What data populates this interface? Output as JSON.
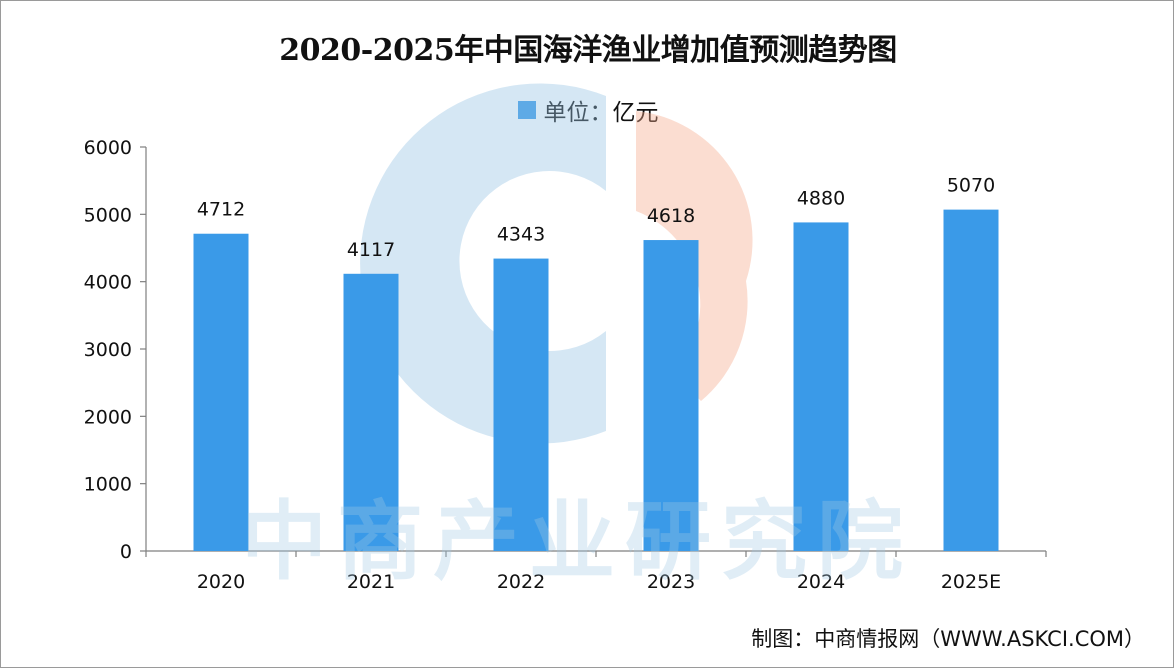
{
  "title": "2020-2025年中国海洋渔业增加值预测趋势图",
  "legend": {
    "label": "单位：亿元"
  },
  "source": "制图：中商情报网（WWW.ASKCI.COM）",
  "watermark": "中商产业研究院",
  "colors": {
    "bar": "#3a9ae8",
    "axis": "#7f7f7f",
    "text": "#111111"
  },
  "chart_data": {
    "type": "bar",
    "title": "2020-2025年中国海洋渔业增加值预测趋势图",
    "categories": [
      "2020",
      "2021",
      "2022",
      "2023",
      "2024",
      "2025E"
    ],
    "series": [
      {
        "name": "单位：亿元",
        "values": [
          4712,
          4117,
          4343,
          4618,
          4880,
          5070
        ]
      }
    ],
    "data_labels": [
      "4712",
      "4117",
      "4343",
      "4618",
      "4880",
      "5070"
    ],
    "ylim": [
      0,
      6000
    ],
    "yticks": [
      0,
      1000,
      2000,
      3000,
      4000,
      5000,
      6000
    ],
    "ytick_labels": [
      "0",
      "1000",
      "2000",
      "3000",
      "4000",
      "5000",
      "6000"
    ],
    "xlabel": "",
    "ylabel": "",
    "grid": false,
    "legend_position": "top-center"
  }
}
